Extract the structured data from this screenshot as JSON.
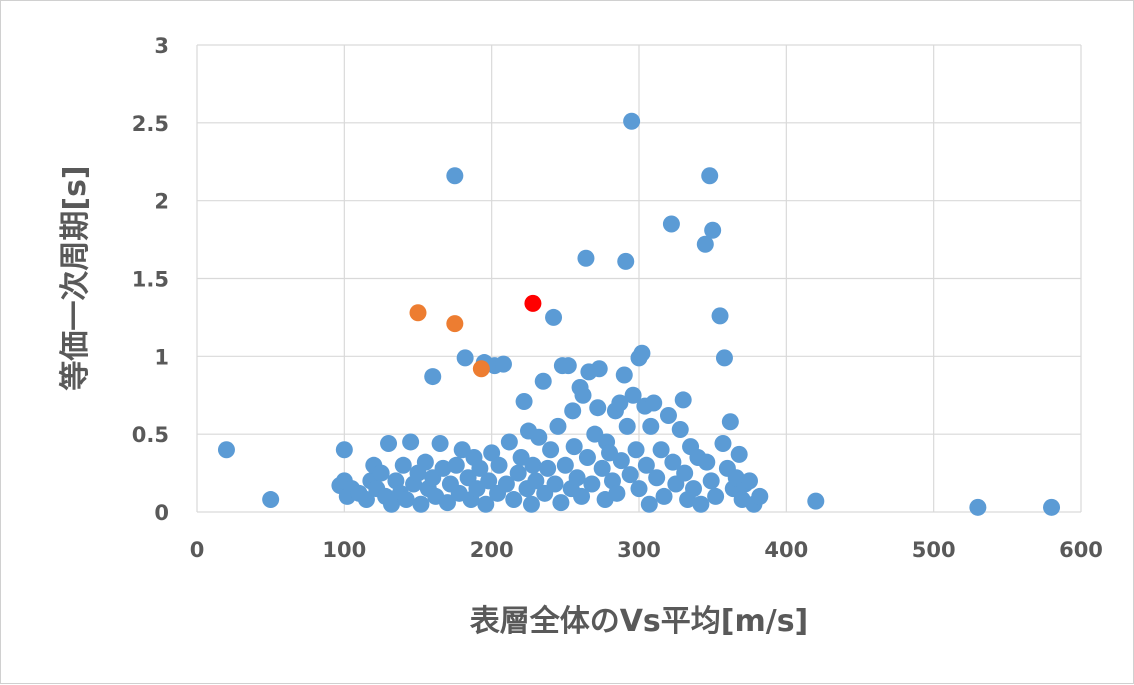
{
  "chart_data": {
    "type": "scatter",
    "xlabel": "表層全体のVs平均[m/s]",
    "ylabel": "等価一次周期[s]",
    "xlim": [
      0,
      600
    ],
    "ylim": [
      0,
      3
    ],
    "xticks": [
      "0",
      "100",
      "200",
      "300",
      "400",
      "500",
      "600"
    ],
    "yticks": [
      "0",
      "0.5",
      "1",
      "1.5",
      "2",
      "2.5",
      "3"
    ],
    "grid": true,
    "legend": "none",
    "series": [
      {
        "color": "#5b9bd5",
        "points": [
          [
            20,
            0.4
          ],
          [
            50,
            0.08
          ],
          [
            97,
            0.17
          ],
          [
            100,
            0.4
          ],
          [
            100,
            0.2
          ],
          [
            102,
            0.1
          ],
          [
            105,
            0.15
          ],
          [
            110,
            0.12
          ],
          [
            115,
            0.08
          ],
          [
            118,
            0.2
          ],
          [
            120,
            0.3
          ],
          [
            122,
            0.15
          ],
          [
            125,
            0.25
          ],
          [
            128,
            0.1
          ],
          [
            130,
            0.44
          ],
          [
            132,
            0.05
          ],
          [
            135,
            0.2
          ],
          [
            138,
            0.12
          ],
          [
            140,
            0.3
          ],
          [
            142,
            0.08
          ],
          [
            145,
            0.45
          ],
          [
            147,
            0.18
          ],
          [
            150,
            0.25
          ],
          [
            152,
            0.05
          ],
          [
            155,
            0.32
          ],
          [
            157,
            0.15
          ],
          [
            160,
            0.87
          ],
          [
            160,
            0.22
          ],
          [
            162,
            0.1
          ],
          [
            165,
            0.44
          ],
          [
            167,
            0.28
          ],
          [
            170,
            0.06
          ],
          [
            172,
            0.18
          ],
          [
            175,
            2.16
          ],
          [
            176,
            0.3
          ],
          [
            178,
            0.12
          ],
          [
            180,
            0.4
          ],
          [
            182,
            0.99
          ],
          [
            184,
            0.22
          ],
          [
            186,
            0.08
          ],
          [
            188,
            0.35
          ],
          [
            190,
            0.15
          ],
          [
            192,
            0.28
          ],
          [
            195,
            0.96
          ],
          [
            196,
            0.05
          ],
          [
            198,
            0.2
          ],
          [
            200,
            0.38
          ],
          [
            202,
            0.94
          ],
          [
            204,
            0.12
          ],
          [
            205,
            0.3
          ],
          [
            208,
            0.95
          ],
          [
            210,
            0.18
          ],
          [
            212,
            0.45
          ],
          [
            215,
            0.08
          ],
          [
            218,
            0.25
          ],
          [
            220,
            0.35
          ],
          [
            222,
            0.71
          ],
          [
            224,
            0.15
          ],
          [
            225,
            0.52
          ],
          [
            227,
            0.05
          ],
          [
            228,
            0.3
          ],
          [
            230,
            0.2
          ],
          [
            232,
            0.48
          ],
          [
            235,
            0.84
          ],
          [
            236,
            0.12
          ],
          [
            238,
            0.28
          ],
          [
            240,
            0.4
          ],
          [
            242,
            1.25
          ],
          [
            243,
            0.18
          ],
          [
            245,
            0.55
          ],
          [
            247,
            0.06
          ],
          [
            248,
            0.94
          ],
          [
            250,
            0.3
          ],
          [
            252,
            0.94
          ],
          [
            254,
            0.15
          ],
          [
            255,
            0.65
          ],
          [
            256,
            0.42
          ],
          [
            258,
            0.22
          ],
          [
            260,
            0.8
          ],
          [
            261,
            0.1
          ],
          [
            262,
            0.75
          ],
          [
            264,
            1.63
          ],
          [
            265,
            0.35
          ],
          [
            266,
            0.9
          ],
          [
            268,
            0.18
          ],
          [
            270,
            0.5
          ],
          [
            272,
            0.67
          ],
          [
            273,
            0.92
          ],
          [
            275,
            0.28
          ],
          [
            277,
            0.08
          ],
          [
            278,
            0.45
          ],
          [
            280,
            0.38
          ],
          [
            282,
            0.2
          ],
          [
            284,
            0.65
          ],
          [
            285,
            0.12
          ],
          [
            287,
            0.7
          ],
          [
            288,
            0.33
          ],
          [
            290,
            0.88
          ],
          [
            291,
            1.61
          ],
          [
            292,
            0.55
          ],
          [
            294,
            0.24
          ],
          [
            295,
            2.51
          ],
          [
            296,
            0.75
          ],
          [
            298,
            0.4
          ],
          [
            300,
            0.99
          ],
          [
            300,
            0.15
          ],
          [
            302,
            1.02
          ],
          [
            304,
            0.68
          ],
          [
            305,
            0.3
          ],
          [
            307,
            0.05
          ],
          [
            308,
            0.55
          ],
          [
            310,
            0.7
          ],
          [
            312,
            0.22
          ],
          [
            315,
            0.4
          ],
          [
            317,
            0.1
          ],
          [
            320,
            0.62
          ],
          [
            322,
            1.85
          ],
          [
            323,
            0.32
          ],
          [
            325,
            0.18
          ],
          [
            328,
            0.53
          ],
          [
            330,
            0.72
          ],
          [
            331,
            0.25
          ],
          [
            333,
            0.08
          ],
          [
            335,
            0.42
          ],
          [
            337,
            0.15
          ],
          [
            340,
            0.35
          ],
          [
            342,
            0.05
          ],
          [
            345,
            1.72
          ],
          [
            346,
            0.32
          ],
          [
            348,
            2.16
          ],
          [
            349,
            0.2
          ],
          [
            350,
            1.81
          ],
          [
            352,
            0.1
          ],
          [
            355,
            1.26
          ],
          [
            357,
            0.44
          ],
          [
            358,
            0.99
          ],
          [
            360,
            0.28
          ],
          [
            362,
            0.58
          ],
          [
            364,
            0.15
          ],
          [
            366,
            0.22
          ],
          [
            368,
            0.37
          ],
          [
            370,
            0.08
          ],
          [
            372,
            0.18
          ],
          [
            375,
            0.2
          ],
          [
            378,
            0.05
          ],
          [
            382,
            0.1
          ],
          [
            420,
            0.07
          ],
          [
            530,
            0.03
          ],
          [
            580,
            0.03
          ]
        ]
      },
      {
        "color": "#ed7d31",
        "points": [
          [
            150,
            1.28
          ],
          [
            175,
            1.21
          ],
          [
            193,
            0.92
          ]
        ]
      },
      {
        "color": "#ff0000",
        "points": [
          [
            228,
            1.34
          ]
        ]
      }
    ]
  }
}
